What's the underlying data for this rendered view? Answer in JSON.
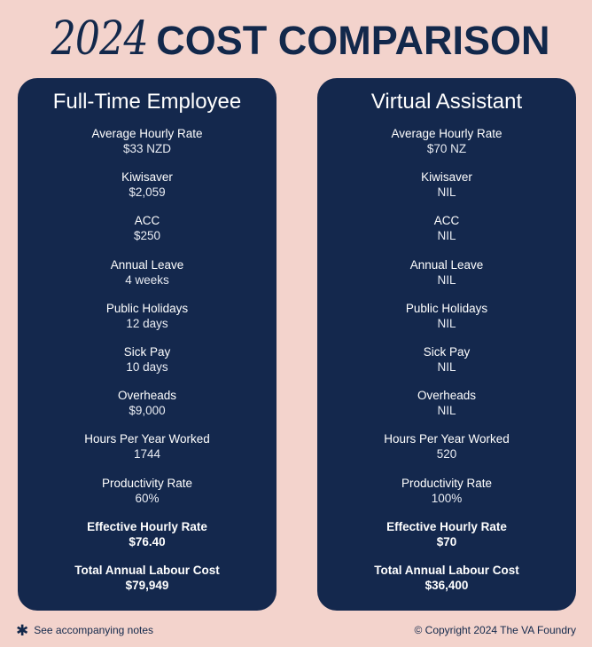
{
  "title": {
    "year": "2024",
    "main": "COST COMPARISON"
  },
  "cards": [
    {
      "heading": "Full-Time Employee",
      "rows": [
        {
          "label": "Average Hourly Rate",
          "value": "$33 NZD"
        },
        {
          "label": "Kiwisaver",
          "value": "$2,059"
        },
        {
          "label": "ACC",
          "value": "$250"
        },
        {
          "label": "Annual Leave",
          "value": "4 weeks"
        },
        {
          "label": "Public Holidays",
          "value": "12 days"
        },
        {
          "label": "Sick Pay",
          "value": "10 days"
        },
        {
          "label": "Overheads",
          "value": "$9,000"
        },
        {
          "label": "Hours Per Year Worked",
          "value": "1744"
        },
        {
          "label": "Productivity Rate",
          "value": "60%"
        },
        {
          "label": "Effective Hourly Rate",
          "value": "$76.40"
        },
        {
          "label": "Total Annual Labour Cost",
          "value": "$79,949"
        }
      ]
    },
    {
      "heading": "Virtual Assistant",
      "rows": [
        {
          "label": "Average Hourly Rate",
          "value": "$70 NZ"
        },
        {
          "label": "Kiwisaver",
          "value": "NIL"
        },
        {
          "label": "ACC",
          "value": "NIL"
        },
        {
          "label": "Annual Leave",
          "value": "NIL"
        },
        {
          "label": "Public Holidays",
          "value": "NIL"
        },
        {
          "label": "Sick Pay",
          "value": "NIL"
        },
        {
          "label": "Overheads",
          "value": "NIL"
        },
        {
          "label": "Hours Per Year Worked",
          "value": "520"
        },
        {
          "label": "Productivity Rate",
          "value": "100%"
        },
        {
          "label": "Effective Hourly Rate",
          "value": "$70"
        },
        {
          "label": "Total Annual Labour Cost",
          "value": "$36,400"
        }
      ]
    }
  ],
  "footer": {
    "note": "See accompanying notes",
    "copyright": "© Copyright 2024 The VA Foundry"
  },
  "colors": {
    "background": "#f3d3cc",
    "navy": "#14284d",
    "text_light": "#ffffff"
  }
}
